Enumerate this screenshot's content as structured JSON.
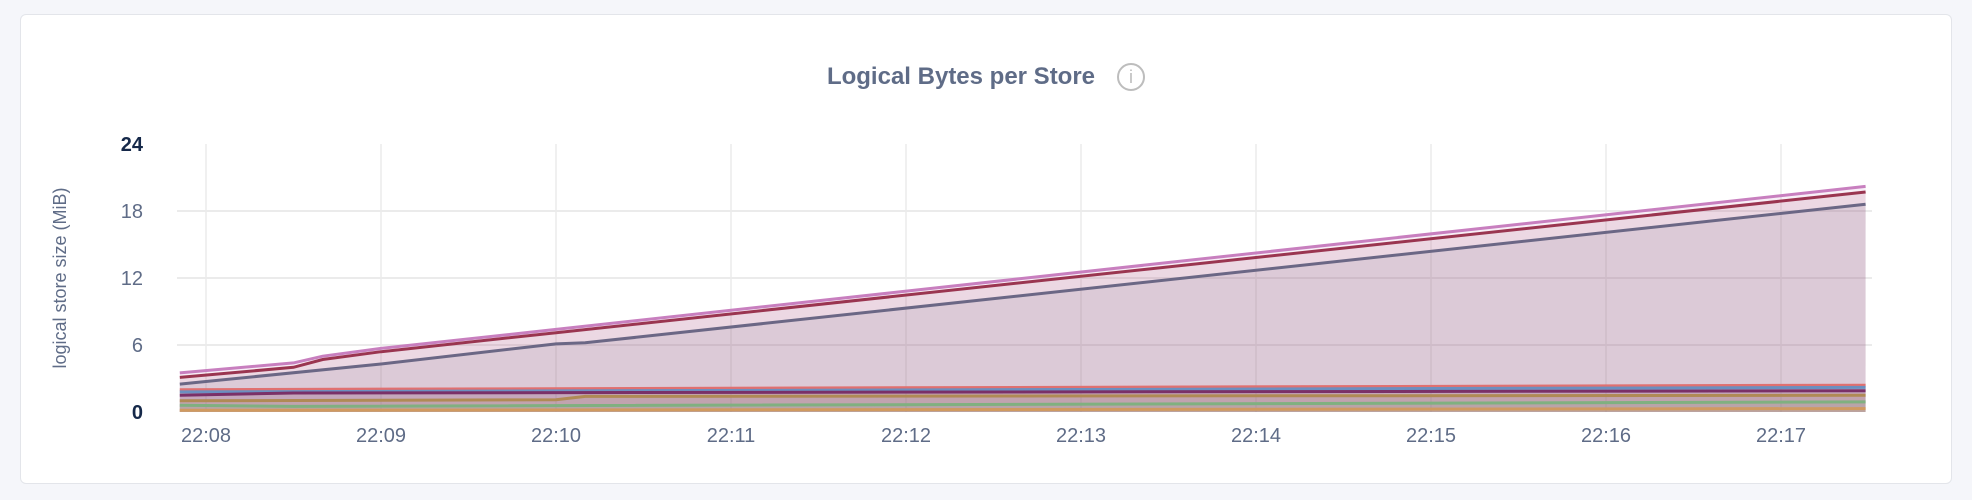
{
  "chart_data": {
    "type": "area",
    "title": "Logical Bytes per Store",
    "ylabel": "logical store size (MiB)",
    "xlabel": "",
    "ylim": [
      0,
      24
    ],
    "yticks": [
      "0",
      "6",
      "12",
      "18",
      "24"
    ],
    "xticks": [
      "22:08",
      "22:09",
      "22:10",
      "22:11",
      "22:12",
      "22:13",
      "22:14",
      "22:15",
      "22:16",
      "22:17"
    ],
    "xlim": [
      "22:07:51",
      "22:17:29"
    ],
    "grid": true,
    "legend": "none",
    "fill_color": "#e4d6e0",
    "series": [
      {
        "color": "#c87fbf",
        "points": [
          [
            "22:07:51",
            3.5
          ],
          [
            "22:08:30",
            4.4
          ],
          [
            "22:08:40",
            5.0
          ],
          [
            "22:09:00",
            5.7
          ],
          [
            "22:10:00",
            7.4
          ],
          [
            "22:17:29",
            20.2
          ]
        ]
      },
      {
        "color": "#9a3550",
        "points": [
          [
            "22:07:51",
            3.1
          ],
          [
            "22:08:30",
            4.0
          ],
          [
            "22:08:40",
            4.7
          ],
          [
            "22:09:00",
            5.4
          ],
          [
            "22:10:00",
            7.1
          ],
          [
            "22:17:29",
            19.7
          ]
        ]
      },
      {
        "color": "#6b6785",
        "points": [
          [
            "22:07:51",
            2.5
          ],
          [
            "22:09:00",
            4.3
          ],
          [
            "22:10:00",
            6.1
          ],
          [
            "22:10:10",
            6.2
          ],
          [
            "22:17:29",
            18.6
          ]
        ]
      },
      {
        "color": "#e07070",
        "points": [
          [
            "22:07:51",
            2.0
          ],
          [
            "22:17:29",
            2.4
          ]
        ]
      },
      {
        "color": "#6b8fc0",
        "points": [
          [
            "22:07:51",
            1.8
          ],
          [
            "22:17:29",
            2.2
          ]
        ]
      },
      {
        "color": "#7a3068",
        "points": [
          [
            "22:07:51",
            1.5
          ],
          [
            "22:08:30",
            1.7
          ],
          [
            "22:17:29",
            1.9
          ]
        ]
      },
      {
        "color": "#b08a55",
        "points": [
          [
            "22:07:51",
            1.0
          ],
          [
            "22:10:00",
            1.1
          ],
          [
            "22:10:10",
            1.4
          ],
          [
            "22:17:29",
            1.5
          ]
        ]
      },
      {
        "color": "#80b080",
        "points": [
          [
            "22:07:51",
            0.6
          ],
          [
            "22:08:30",
            0.5
          ],
          [
            "22:17:29",
            0.9
          ]
        ]
      },
      {
        "color": "#d09a60",
        "points": [
          [
            "22:07:51",
            0.15
          ],
          [
            "22:17:29",
            0.3
          ]
        ]
      }
    ]
  },
  "info_icon": "info-icon"
}
